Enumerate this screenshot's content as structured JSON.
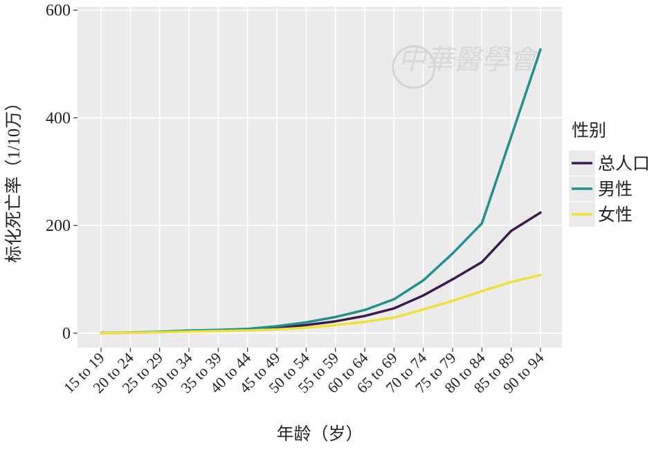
{
  "chart_data": {
    "type": "line",
    "watermark": "中華醫學會",
    "xlabel": "年龄（岁）",
    "ylabel": "标化死亡率（1/10万）",
    "categories": [
      "15 to 19",
      "20 to 24",
      "25 to 29",
      "30 to 34",
      "35 to 39",
      "40 to 44",
      "45 to 49",
      "50 to 54",
      "55 to 59",
      "60 to 64",
      "65 to 69",
      "70 to 74",
      "75 to 79",
      "80 to 84",
      "85 to 89",
      "90 to 94"
    ],
    "series": [
      {
        "name": "总人口",
        "color": "#3b1b4f",
        "values": [
          0.5,
          1,
          2,
          4,
          5,
          7,
          10,
          15,
          22,
          32,
          46,
          70,
          100,
          132,
          190,
          224
        ]
      },
      {
        "name": "男性",
        "color": "#21908c",
        "values": [
          0.6,
          1.2,
          2.5,
          5,
          6,
          8,
          13,
          20,
          30,
          43,
          63,
          98,
          148,
          204,
          365,
          527
        ]
      },
      {
        "name": "女性",
        "color": "#f0e03a",
        "values": [
          0.4,
          0.8,
          1.5,
          3,
          4,
          5,
          7,
          10,
          15,
          21,
          29,
          44,
          60,
          78,
          95,
          108
        ]
      }
    ],
    "legend_title": "性别",
    "legend": "right",
    "ylim": [
      -27,
      606
    ],
    "yticks": [
      0,
      200,
      400,
      600
    ],
    "grid": true
  }
}
